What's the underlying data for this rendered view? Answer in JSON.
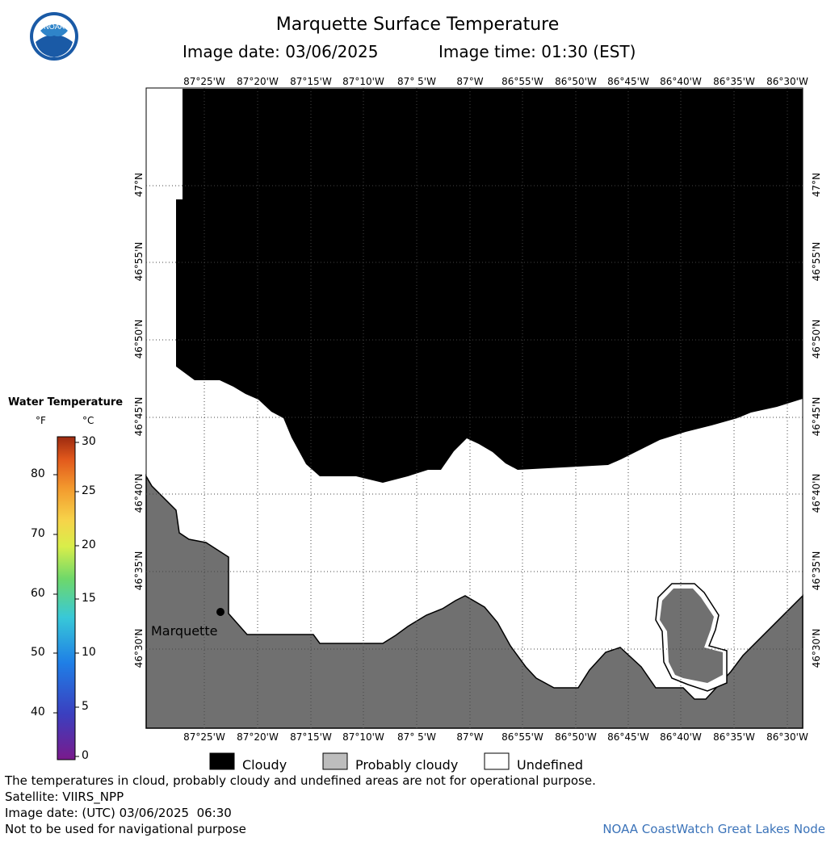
{
  "title": "Marquette Surface Temperature",
  "image_date_label": "Image date: 03/06/2025",
  "image_time_label": "Image time: 01:30 (EST)",
  "logo_text": "NOAA",
  "longitude_ticks": [
    "87°25'W",
    "87°20'W",
    "87°15'W",
    "87°10'W",
    "87° 5'W",
    "87°W",
    "86°55'W",
    "86°50'W",
    "86°45'W",
    "86°40'W",
    "86°35'W",
    "86°30'W"
  ],
  "latitude_ticks": [
    "47°N",
    "46°55'N",
    "46°50'N",
    "46°45'N",
    "46°40'N",
    "46°35'N",
    "46°30'N"
  ],
  "city": {
    "name": "Marquette"
  },
  "colorbar": {
    "title": "Water Temperature",
    "unit_f": "°F",
    "unit_c": "°C",
    "f_ticks": [
      "40",
      "50",
      "60",
      "70",
      "80"
    ],
    "c_ticks": [
      "0",
      "5",
      "10",
      "15",
      "20",
      "25",
      "30"
    ]
  },
  "legend": {
    "cloudy": "Cloudy",
    "probably_cloudy": "Probably cloudy",
    "undefined": "Undefined"
  },
  "colors": {
    "cloud": "#000000",
    "land": "#707070",
    "undefined": "#ffffff",
    "probably_cloudy": "#bdbdbd",
    "credit": "#3b73b9"
  },
  "footer": {
    "line1": "The temperatures in cloud, probably cloudy and undefined areas are not for operational purpose.",
    "line2": "Satellite: VIIRS_NPP",
    "line3": "Image date: (UTC) 03/06/2025  06:30",
    "line4": "Not to be used for navigational purpose",
    "credit": "NOAA CoastWatch Great Lakes Node"
  }
}
